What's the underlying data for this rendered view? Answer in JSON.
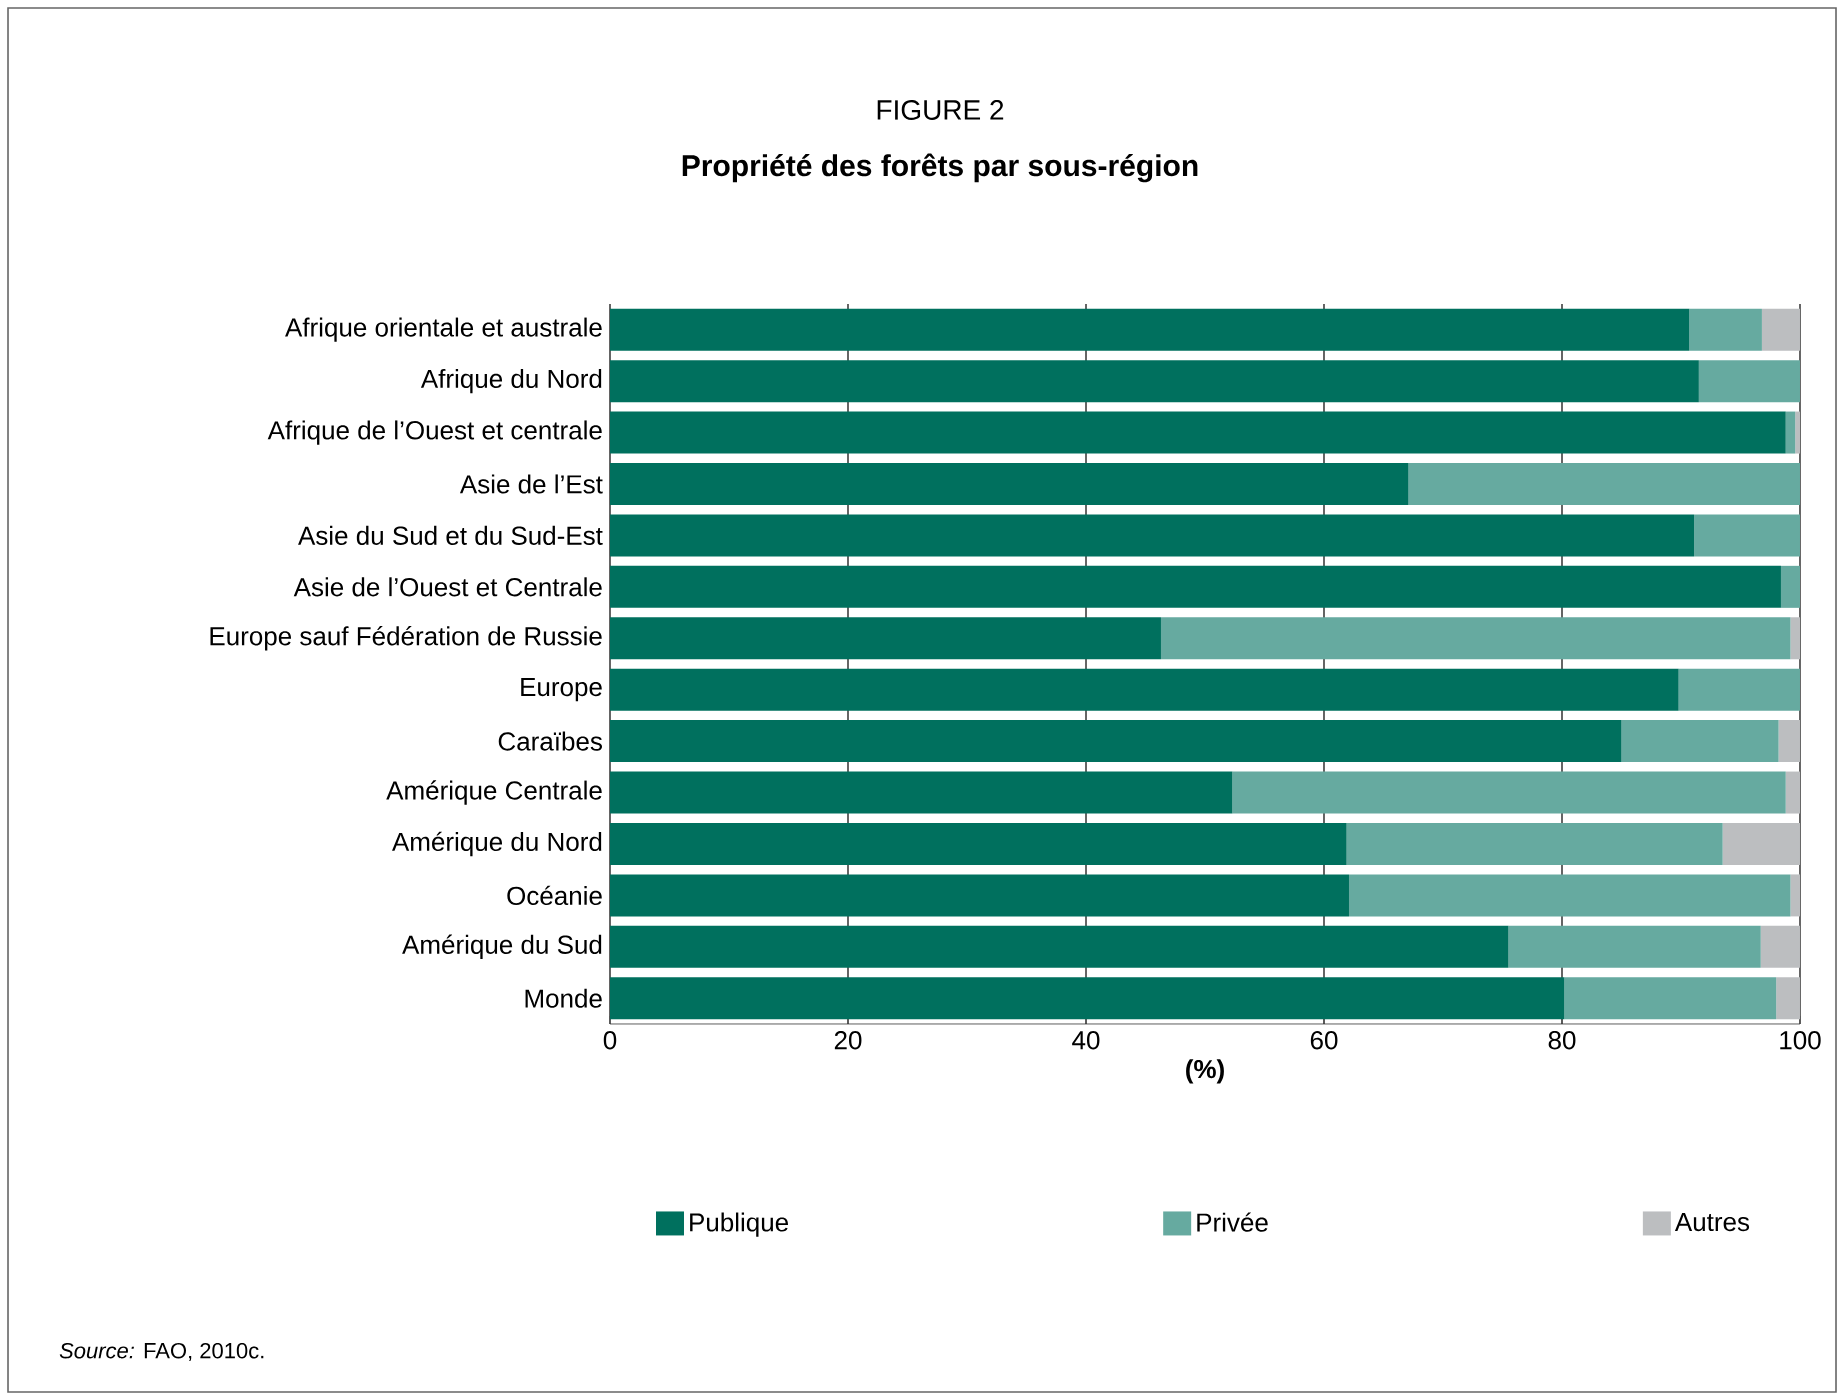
{
  "chart_data": {
    "type": "bar",
    "orientation": "horizontal",
    "stacked": true,
    "title": "FIGURE 2",
    "subtitle": "Propriété des forêts par sous-région",
    "xlabel": "(%)",
    "categories": [
      "Afrique orientale et australe",
      "Afrique du Nord",
      "Afrique de l’Ouest et centrale",
      "Asie de l’Est",
      "Asie du Sud et du Sud-Est",
      "Asie de l’Ouest et Centrale",
      "Europe sauf Fédération de Russie",
      "Europe",
      "Caraïbes",
      "Amérique Centrale",
      "Amérique du Nord",
      "Océanie",
      "Amérique du Sud",
      "Monde"
    ],
    "series": [
      {
        "name": "Publique",
        "color": "#00705e",
        "values": [
          90.7,
          91.5,
          98.8,
          67.1,
          91.1,
          98.4,
          46.3,
          89.8,
          85.0,
          52.3,
          61.9,
          62.1,
          75.5,
          80.2
        ]
      },
      {
        "name": "Privée",
        "color": "#66aaa0",
        "values": [
          6.1,
          8.5,
          0.8,
          32.9,
          8.9,
          1.6,
          52.9,
          10.2,
          13.2,
          46.5,
          31.6,
          37.1,
          21.2,
          17.8
        ]
      },
      {
        "name": "Autres",
        "color": "#bcbec0",
        "values": [
          3.2,
          0,
          0.4,
          0,
          0,
          0,
          0.8,
          0,
          1.8,
          1.2,
          6.5,
          0.8,
          3.3,
          2.0
        ]
      }
    ],
    "xlim": [
      0,
      100
    ],
    "xticks": [
      0,
      20,
      40,
      60,
      80,
      100
    ],
    "grid": "x",
    "legend": "bottom",
    "annotations": [
      "*Source:* FAO, 2010c."
    ]
  }
}
